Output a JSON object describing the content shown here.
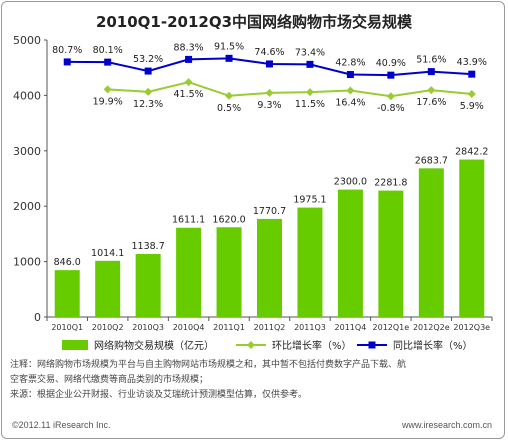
{
  "chart_data": {
    "type": "bar",
    "title": "2010Q1-2012Q3中国网络购物市场交易规模",
    "categories": [
      "2010Q1",
      "2010Q2",
      "2010Q3",
      "2010Q4",
      "2011Q1",
      "2011Q2",
      "2011Q3",
      "2011Q4",
      "2012Q1e",
      "2012Q2e",
      "2012Q3e"
    ],
    "ylim": [
      0,
      5000
    ],
    "yticks": [
      0,
      1000,
      2000,
      3000,
      4000,
      5000
    ],
    "series": [
      {
        "name": "网络购物交易规模（亿元）",
        "kind": "bar",
        "color": "#66cc00",
        "values": [
          846.0,
          1014.1,
          1138.7,
          1611.1,
          1620.0,
          1770.7,
          1975.1,
          2300.0,
          2281.8,
          2683.7,
          2842.2
        ],
        "labels": [
          "846.0",
          "1014.1",
          "1138.7",
          "1611.1",
          "1620.0",
          "1770.7",
          "1975.1",
          "2300.0",
          "2281.8",
          "2683.7",
          "2842.2"
        ]
      },
      {
        "name": "环比增长率（%）",
        "kind": "line",
        "color": "#99cc33",
        "values": [
          null,
          19.9,
          12.3,
          41.5,
          0.5,
          9.3,
          11.5,
          16.4,
          -0.8,
          17.6,
          5.9
        ],
        "labels": [
          null,
          "19.9%",
          "12.3%",
          "41.5%",
          "0.5%",
          "9.3%",
          "11.5%",
          "16.4%",
          "-0.8%",
          "17.6%",
          "5.9%"
        ]
      },
      {
        "name": "同比增长率（%）",
        "kind": "line",
        "color": "#0000cc",
        "values": [
          80.7,
          80.1,
          53.2,
          88.3,
          91.5,
          74.6,
          73.4,
          42.8,
          40.9,
          51.6,
          43.9
        ],
        "labels": [
          "80.7%",
          "80.1%",
          "53.2%",
          "88.3%",
          "91.5%",
          "74.6%",
          "73.4%",
          "42.8%",
          "40.9%",
          "51.6%",
          "43.9%"
        ]
      }
    ],
    "legend_position": "bottom",
    "grid": false
  },
  "notes": {
    "line1": "注释：网络购物市场规模为平台与自主购物网站市场规模之和，其中暂不包括付费数字产品下载、航",
    "line2": "空客票交易、网络代缴费等商品类别的市场规模；",
    "line3": "来源：根据企业公开财报、行业访谈及艾瑞统计预测模型估算，仅供参考。"
  },
  "footer": {
    "copyright": "©2012.11 iResearch Inc.",
    "website": "www.iresearch.com.cn"
  }
}
